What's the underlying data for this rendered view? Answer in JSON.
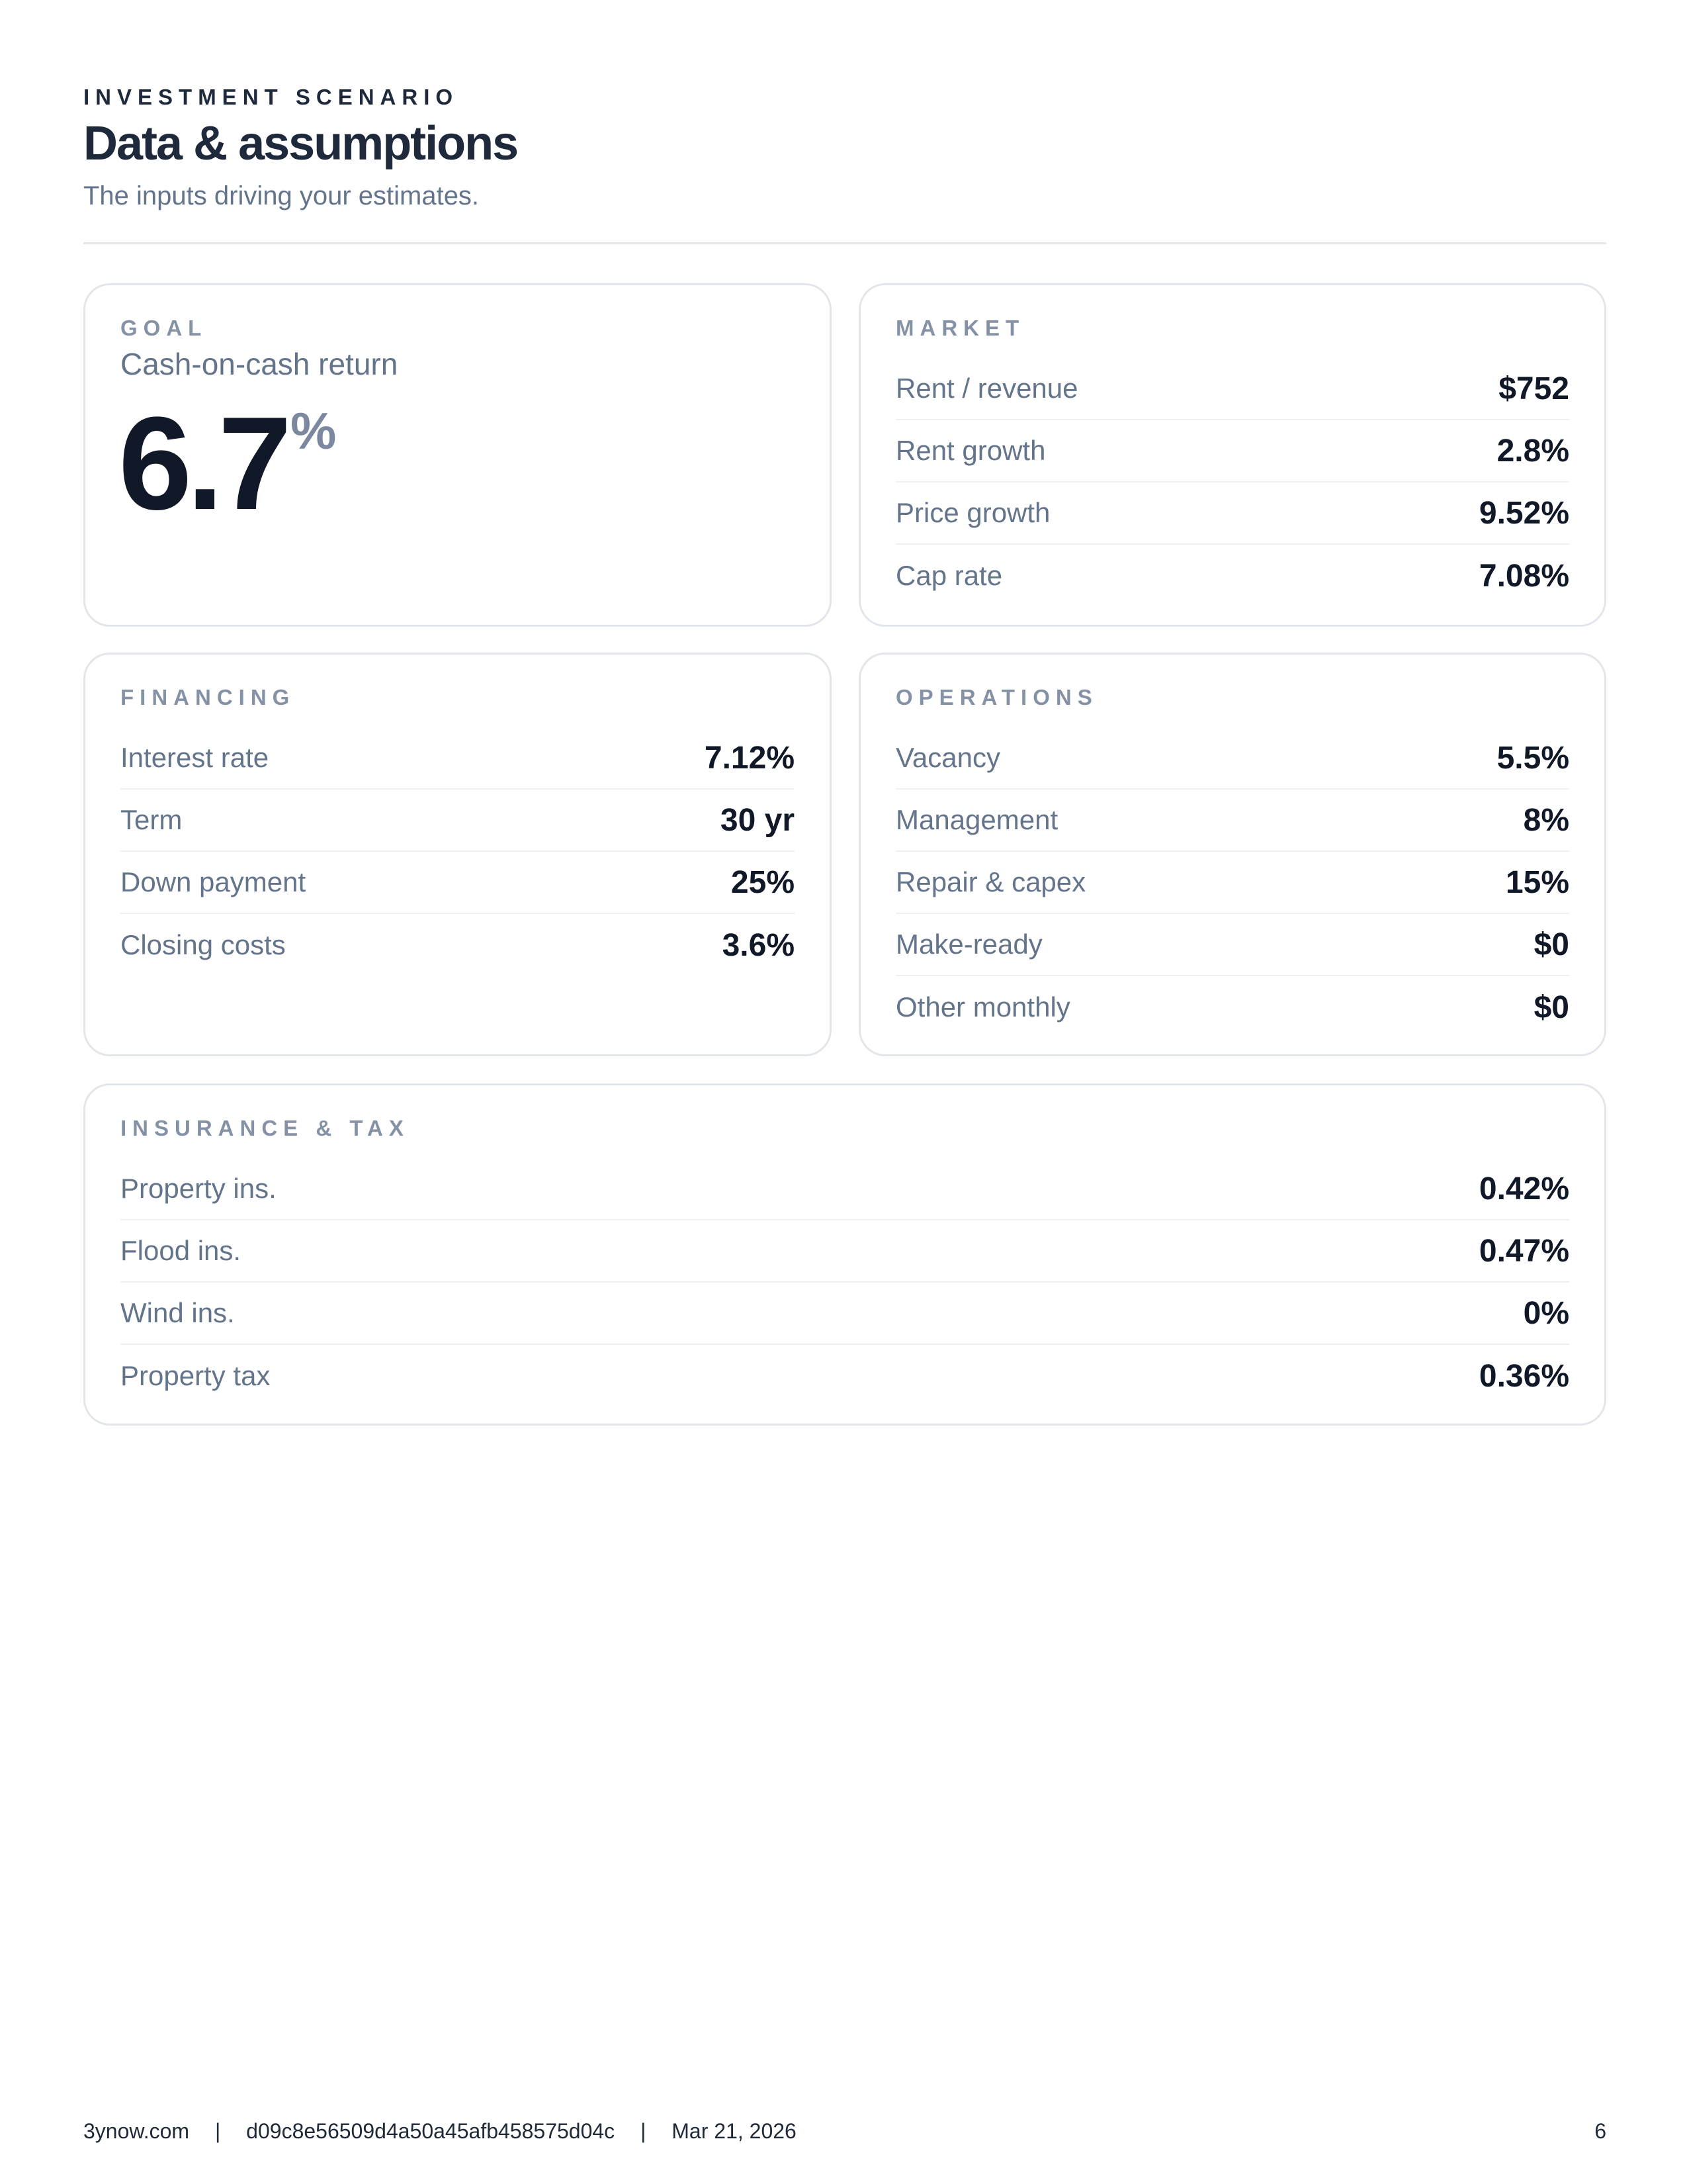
{
  "header": {
    "eyebrow": "INVESTMENT SCENARIO",
    "title": "Data & assumptions",
    "subtitle": "The inputs driving your estimates."
  },
  "goal": {
    "label": "GOAL",
    "metric": "Cash-on-cash return",
    "value": "6.7",
    "unit": "%"
  },
  "sections": [
    {
      "label": "MARKET",
      "rows": [
        [
          "Rent / revenue",
          "$752"
        ],
        [
          "Rent growth",
          "2.8%"
        ],
        [
          "Price growth",
          "9.52%"
        ],
        [
          "Cap rate",
          "7.08%"
        ]
      ]
    },
    {
      "label": "FINANCING",
      "rows": [
        [
          "Interest rate",
          "7.12%"
        ],
        [
          "Term",
          "30 yr"
        ],
        [
          "Down payment",
          "25%"
        ],
        [
          "Closing costs",
          "3.6%"
        ]
      ]
    },
    {
      "label": "OPERATIONS",
      "rows": [
        [
          "Vacancy",
          "5.5%"
        ],
        [
          "Management",
          "8%"
        ],
        [
          "Repair & capex",
          "15%"
        ],
        [
          "Make-ready",
          "$0"
        ],
        [
          "Other monthly",
          "$0"
        ]
      ]
    },
    {
      "label": "INSURANCE & TAX",
      "rows": [
        [
          "Property ins.",
          "0.42%"
        ],
        [
          "Flood ins.",
          "0.47%"
        ],
        [
          "Wind ins.",
          "0%"
        ],
        [
          "Property tax",
          "0.36%"
        ]
      ]
    }
  ],
  "footer": {
    "site": "3ynow.com",
    "separator": "|",
    "id": "d09c8e56509d4a50a45afb458575d04c",
    "date": "Mar 21, 2026",
    "page": "6"
  }
}
